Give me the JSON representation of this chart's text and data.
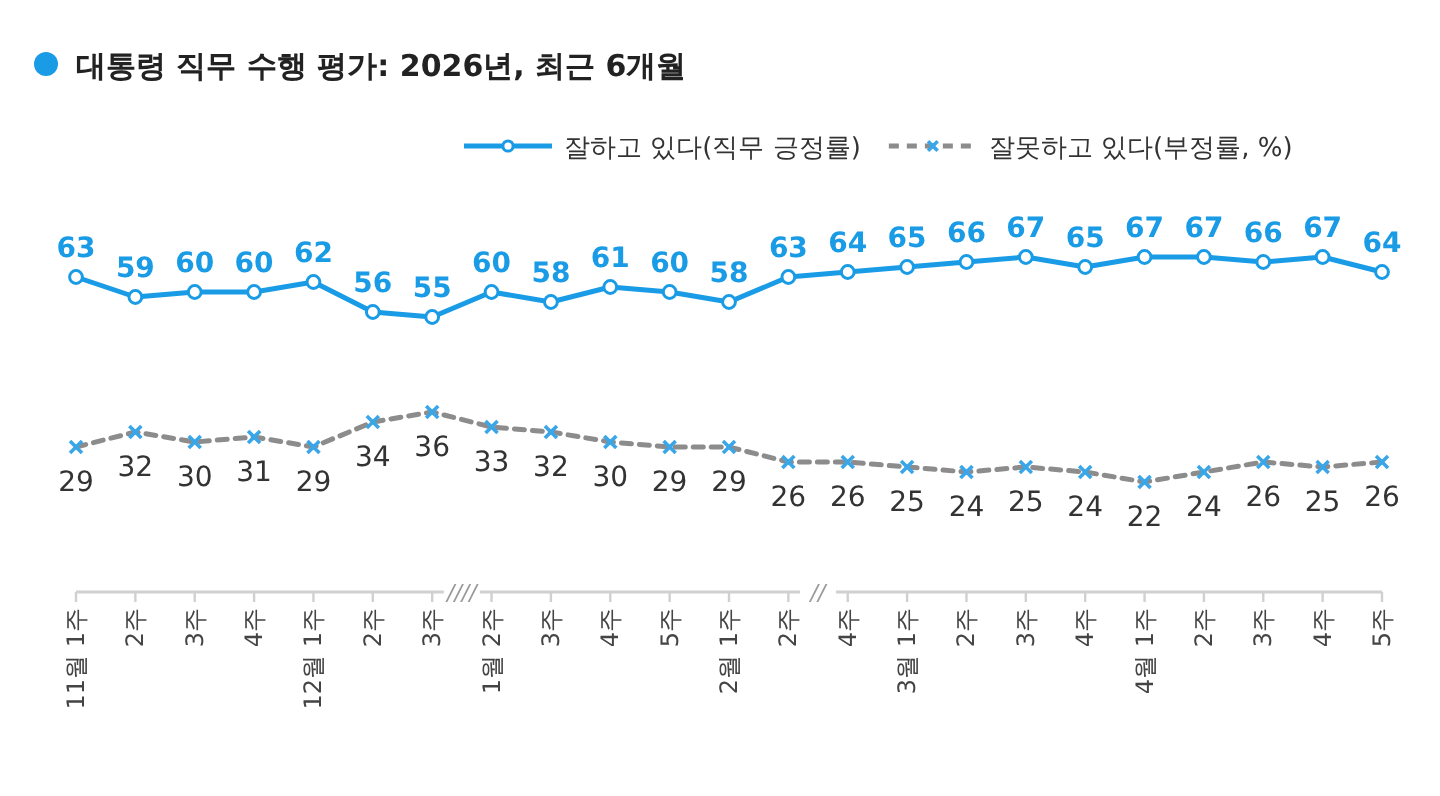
{
  "chart_data": {
    "type": "line",
    "title": "대통령 직무 수행 평가: 2026년, 최근 6개월",
    "categories": [
      "11월 1주",
      "2주",
      "3주",
      "4주",
      "12월 1주",
      "2주",
      "3주",
      "1월 2주",
      "3주",
      "4주",
      "5주",
      "2월 1주",
      "2주",
      "4주",
      "3월 1주",
      "2주",
      "3주",
      "4주",
      "4월 1주",
      "2주",
      "3주",
      "4주",
      "5주"
    ],
    "series": [
      {
        "name": "잘하고 있다(직무 긍정률)",
        "color": "#1a9be6",
        "marker": "circle",
        "line_style": "solid",
        "values": [
          63,
          59,
          60,
          60,
          62,
          56,
          55,
          60,
          58,
          61,
          60,
          58,
          63,
          64,
          65,
          66,
          67,
          65,
          67,
          67,
          66,
          67,
          64
        ]
      },
      {
        "name": "잘못하고 있다(부정률, %)",
        "color": "#8c8c8c",
        "marker": "cross",
        "line_style": "dashed",
        "values": [
          29,
          32,
          30,
          31,
          29,
          34,
          36,
          33,
          32,
          30,
          29,
          29,
          26,
          26,
          25,
          24,
          25,
          24,
          22,
          24,
          26,
          25,
          26
        ]
      }
    ],
    "annotations": [
      "////",
      "//"
    ],
    "data_labels": true,
    "legend": "top right"
  }
}
